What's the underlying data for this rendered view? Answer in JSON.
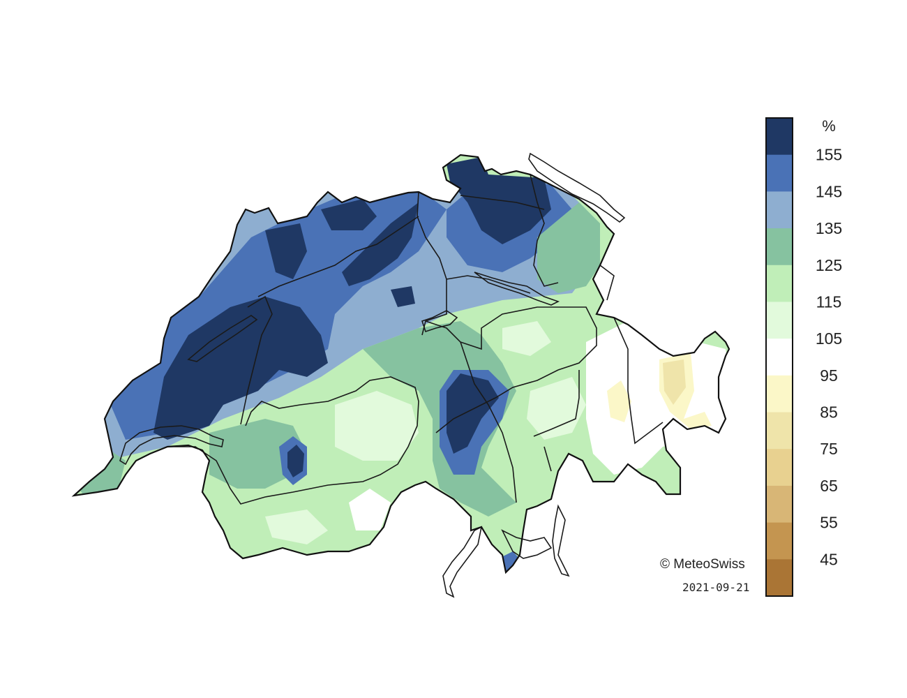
{
  "legend": {
    "unit": "%",
    "labels": [
      "155",
      "145",
      "135",
      "125",
      "115",
      "105",
      "95",
      "85",
      "75",
      "65",
      "55",
      "45"
    ],
    "colors": [
      "#1f3864",
      "#4a72b6",
      "#8eaed0",
      "#86c2a0",
      "#c0eeb8",
      "#e2fadc",
      "#ffffff",
      "#fbf7c8",
      "#efe4aa",
      "#e8d190",
      "#d8b676",
      "#c49550",
      "#aa7535"
    ]
  },
  "credit": {
    "copyright": "© MeteoSwiss",
    "date": "2021-09-21"
  }
}
